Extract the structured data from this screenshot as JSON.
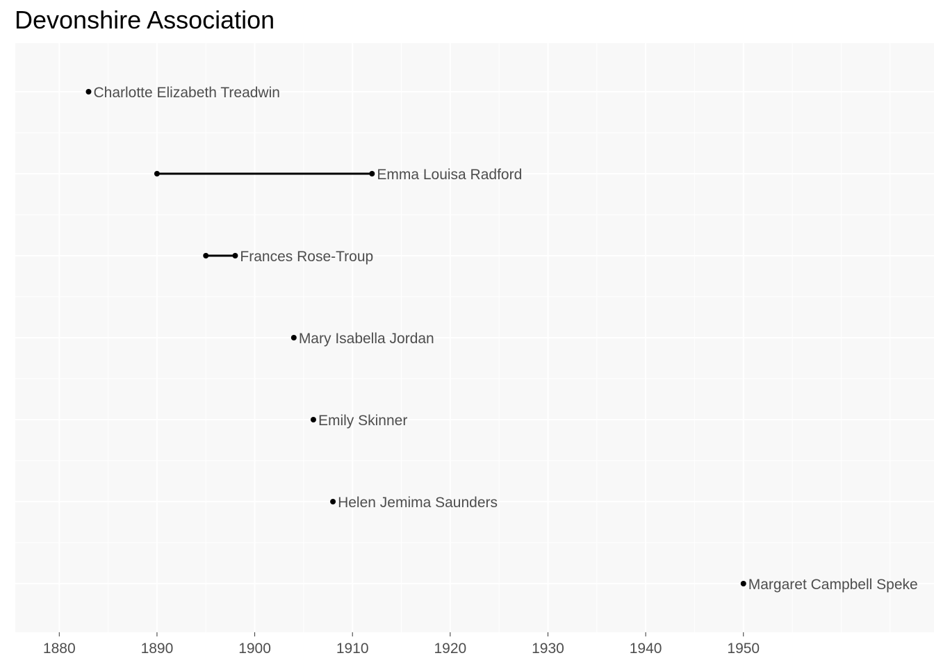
{
  "title": "Devonshire Association",
  "chart_data": {
    "type": "timeline",
    "title": "Devonshire Association",
    "xlabel": "",
    "ylabel": "",
    "xlim": [
      1875.5,
      1969.5
    ],
    "x_ticks": [
      1880,
      1890,
      1900,
      1910,
      1920,
      1930,
      1940,
      1950
    ],
    "grid": true,
    "background": "#f8f8f8",
    "grid_color": "#ffffff",
    "mark_color": "#000000",
    "label_color": "#4d4d4d",
    "series": [
      {
        "label": "Charlotte Elizabeth Treadwin",
        "start": 1883,
        "end": 1883
      },
      {
        "label": "Emma Louisa Radford",
        "start": 1890,
        "end": 1912
      },
      {
        "label": "Frances Rose-Troup",
        "start": 1895,
        "end": 1898
      },
      {
        "label": "Mary Isabella Jordan",
        "start": 1904,
        "end": 1904
      },
      {
        "label": "Emily Skinner",
        "start": 1906,
        "end": 1906
      },
      {
        "label": "Helen Jemima Saunders",
        "start": 1908,
        "end": 1908
      },
      {
        "label": "Margaret Campbell Speke",
        "start": 1950,
        "end": 1950
      }
    ]
  }
}
